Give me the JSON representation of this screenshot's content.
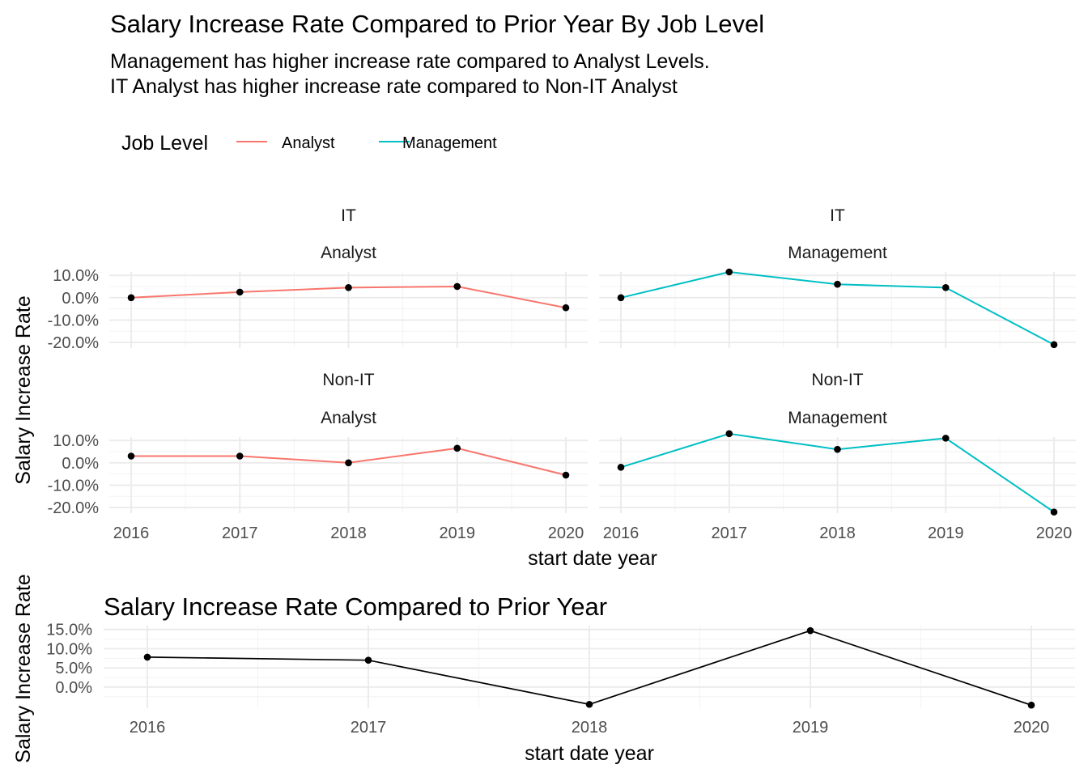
{
  "header": {
    "title": "Salary Increase Rate Compared to Prior Year By Job Level",
    "subtitle_lines": [
      "Management has higher increase rate compared to Analyst Levels.",
      "IT Analyst has higher increase rate compared to Non-IT Analyst"
    ]
  },
  "legend": {
    "title": "Job Level",
    "placement": "top-left",
    "items": [
      {
        "label": "Analyst",
        "color": "#F8766D"
      },
      {
        "label": "Management",
        "color": "#00BFC4"
      }
    ]
  },
  "chart_data": [
    {
      "type": "line",
      "facet": "department ~ job level",
      "x": [
        2016,
        2017,
        2018,
        2019,
        2020
      ],
      "xlabel": "start date year",
      "ylabel": "Salary Increase Rate",
      "x_ticks": [
        "2016",
        "2017",
        "2018",
        "2019",
        "2020"
      ],
      "y_ticks": [
        {
          "value": 0.1,
          "label": "10.0%"
        },
        {
          "value": 0.0,
          "label": "0.0%"
        },
        {
          "value": -0.1,
          "label": "-10.0%"
        },
        {
          "value": -0.2,
          "label": "-20.0%"
        }
      ],
      "ylim": [
        -0.225,
        0.115
      ],
      "grid": true,
      "panels": [
        {
          "strip_top": "IT",
          "strip_bottom": "Analyst",
          "color": "#F8766D",
          "values": [
            0.0,
            0.025,
            0.045,
            0.05,
            -0.045
          ]
        },
        {
          "strip_top": "IT",
          "strip_bottom": "Management",
          "color": "#00BFC4",
          "values": [
            0.0,
            0.115,
            0.06,
            0.045,
            -0.21
          ]
        },
        {
          "strip_top": "Non-IT",
          "strip_bottom": "Analyst",
          "color": "#F8766D",
          "values": [
            0.03,
            0.03,
            0.0,
            0.065,
            -0.055
          ]
        },
        {
          "strip_top": "Non-IT",
          "strip_bottom": "Management",
          "color": "#00BFC4",
          "values": [
            -0.02,
            0.13,
            0.06,
            0.11,
            -0.22
          ]
        }
      ]
    },
    {
      "type": "line",
      "title": "Salary Increase Rate Compared to Prior Year",
      "x": [
        2016,
        2017,
        2018,
        2019,
        2020
      ],
      "values": [
        0.078,
        0.07,
        -0.045,
        0.147,
        -0.047
      ],
      "color": "#000000",
      "xlabel": "start date year",
      "ylabel": "Salary Increase Rate",
      "x_ticks": [
        "2016",
        "2017",
        "2018",
        "2019",
        "2020"
      ],
      "y_ticks": [
        {
          "value": 0.15,
          "label": "15.0%"
        },
        {
          "value": 0.1,
          "label": "10.0%"
        },
        {
          "value": 0.05,
          "label": "5.0%"
        },
        {
          "value": 0.0,
          "label": "0.0%"
        }
      ],
      "ylim": [
        -0.055,
        0.16
      ],
      "grid": true
    }
  ]
}
